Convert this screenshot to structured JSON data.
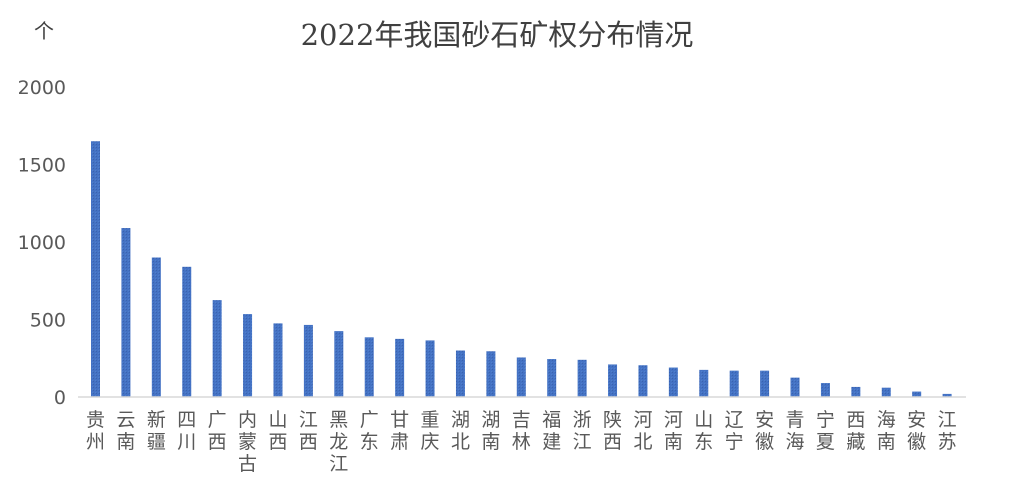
{
  "chart_data": {
    "type": "bar",
    "title": "2022年我国砂石矿权分布情况",
    "unit": "个",
    "categories": [
      "贵州",
      "云南",
      "新疆",
      "四川",
      "广西",
      "内蒙古",
      "山西",
      "江西",
      "黑龙江",
      "广东",
      "甘肃",
      "重庆",
      "湖北",
      "湖南",
      "吉林",
      "福建",
      "浙江",
      "陕西",
      "河北",
      "河南",
      "山东",
      "辽宁",
      "安徽",
      "青海",
      "宁夏",
      "西藏",
      "海南",
      "安徽",
      "江苏"
    ],
    "values": [
      1650,
      1090,
      900,
      840,
      625,
      535,
      475,
      465,
      425,
      385,
      375,
      365,
      300,
      295,
      255,
      245,
      240,
      210,
      205,
      190,
      175,
      170,
      170,
      125,
      90,
      65,
      60,
      35,
      20
    ],
    "ylim": [
      0,
      2000
    ],
    "yticks": [
      "0",
      "500",
      "1000",
      "1500",
      "2000"
    ],
    "bar_color": "#4472C4",
    "axis_color": "#D9D9D9",
    "text_color": "#595959",
    "grid": false,
    "legend": "none"
  }
}
